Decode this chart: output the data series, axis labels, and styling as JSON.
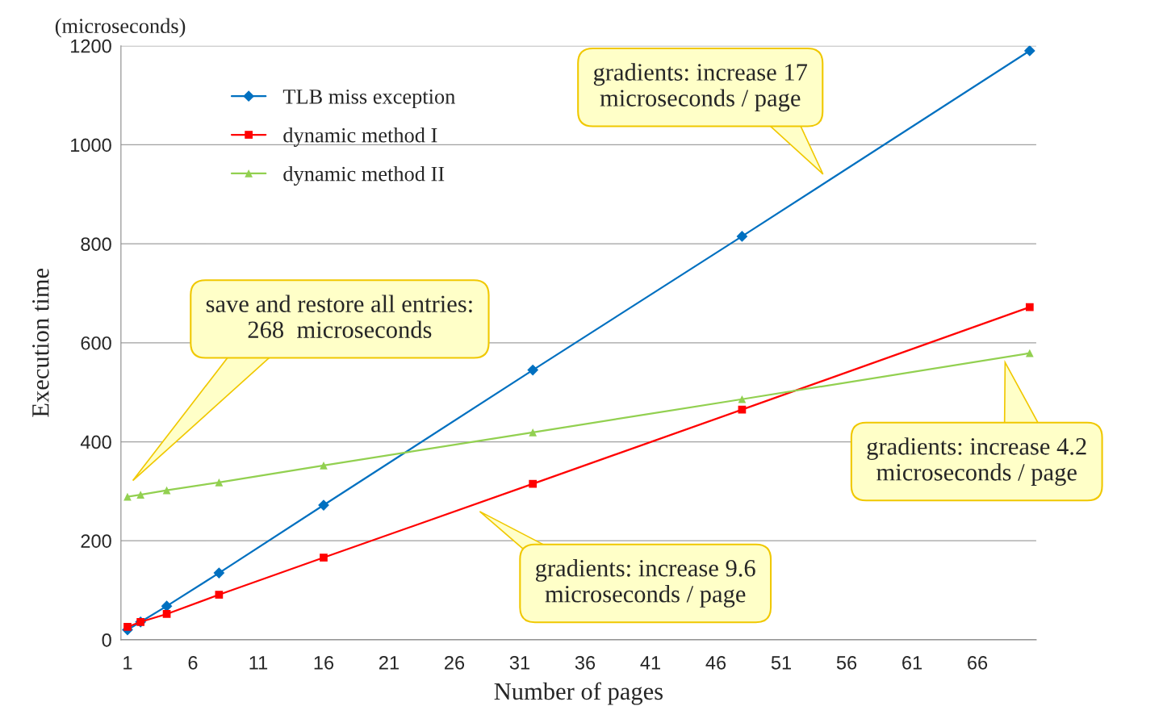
{
  "chart_data": {
    "type": "line",
    "xlabel": "Number of pages",
    "ylabel": "Execution time",
    "x": [
      1,
      2,
      4,
      8,
      16,
      32,
      48,
      70
    ],
    "xlim": [
      0.5,
      70.5
    ],
    "xticks": [
      1,
      6,
      11,
      16,
      21,
      26,
      31,
      36,
      41,
      46,
      51,
      56,
      61,
      66
    ],
    "ylim": [
      0,
      1200
    ],
    "yticks": [
      0,
      200,
      400,
      600,
      800,
      1000,
      1200
    ],
    "grid": "y",
    "legend": "top left",
    "series": [
      {
        "name": "TLB miss exception",
        "color": "#0070c0",
        "marker": "diamond",
        "values": [
          20,
          36,
          68,
          135,
          272,
          545,
          815,
          1190
        ]
      },
      {
        "name": "dynamic method I",
        "color": "#ff0000",
        "marker": "square",
        "values": [
          26,
          36,
          52,
          91,
          166,
          315,
          465,
          672
        ]
      },
      {
        "name": "dynamic method II",
        "color": "#92d050",
        "marker": "triangle",
        "values": [
          289,
          293,
          302,
          318,
          352,
          419,
          486,
          579
        ]
      }
    ],
    "annotations": [
      "(microseconds)",
      "gradients: increase 17\nmicroseconds / page",
      "save and restore all entries:\n268  microseconds",
      "gradients: increase 4.2\nmicroseconds / page",
      "gradients: increase 9.6\nmicroseconds / page"
    ]
  }
}
